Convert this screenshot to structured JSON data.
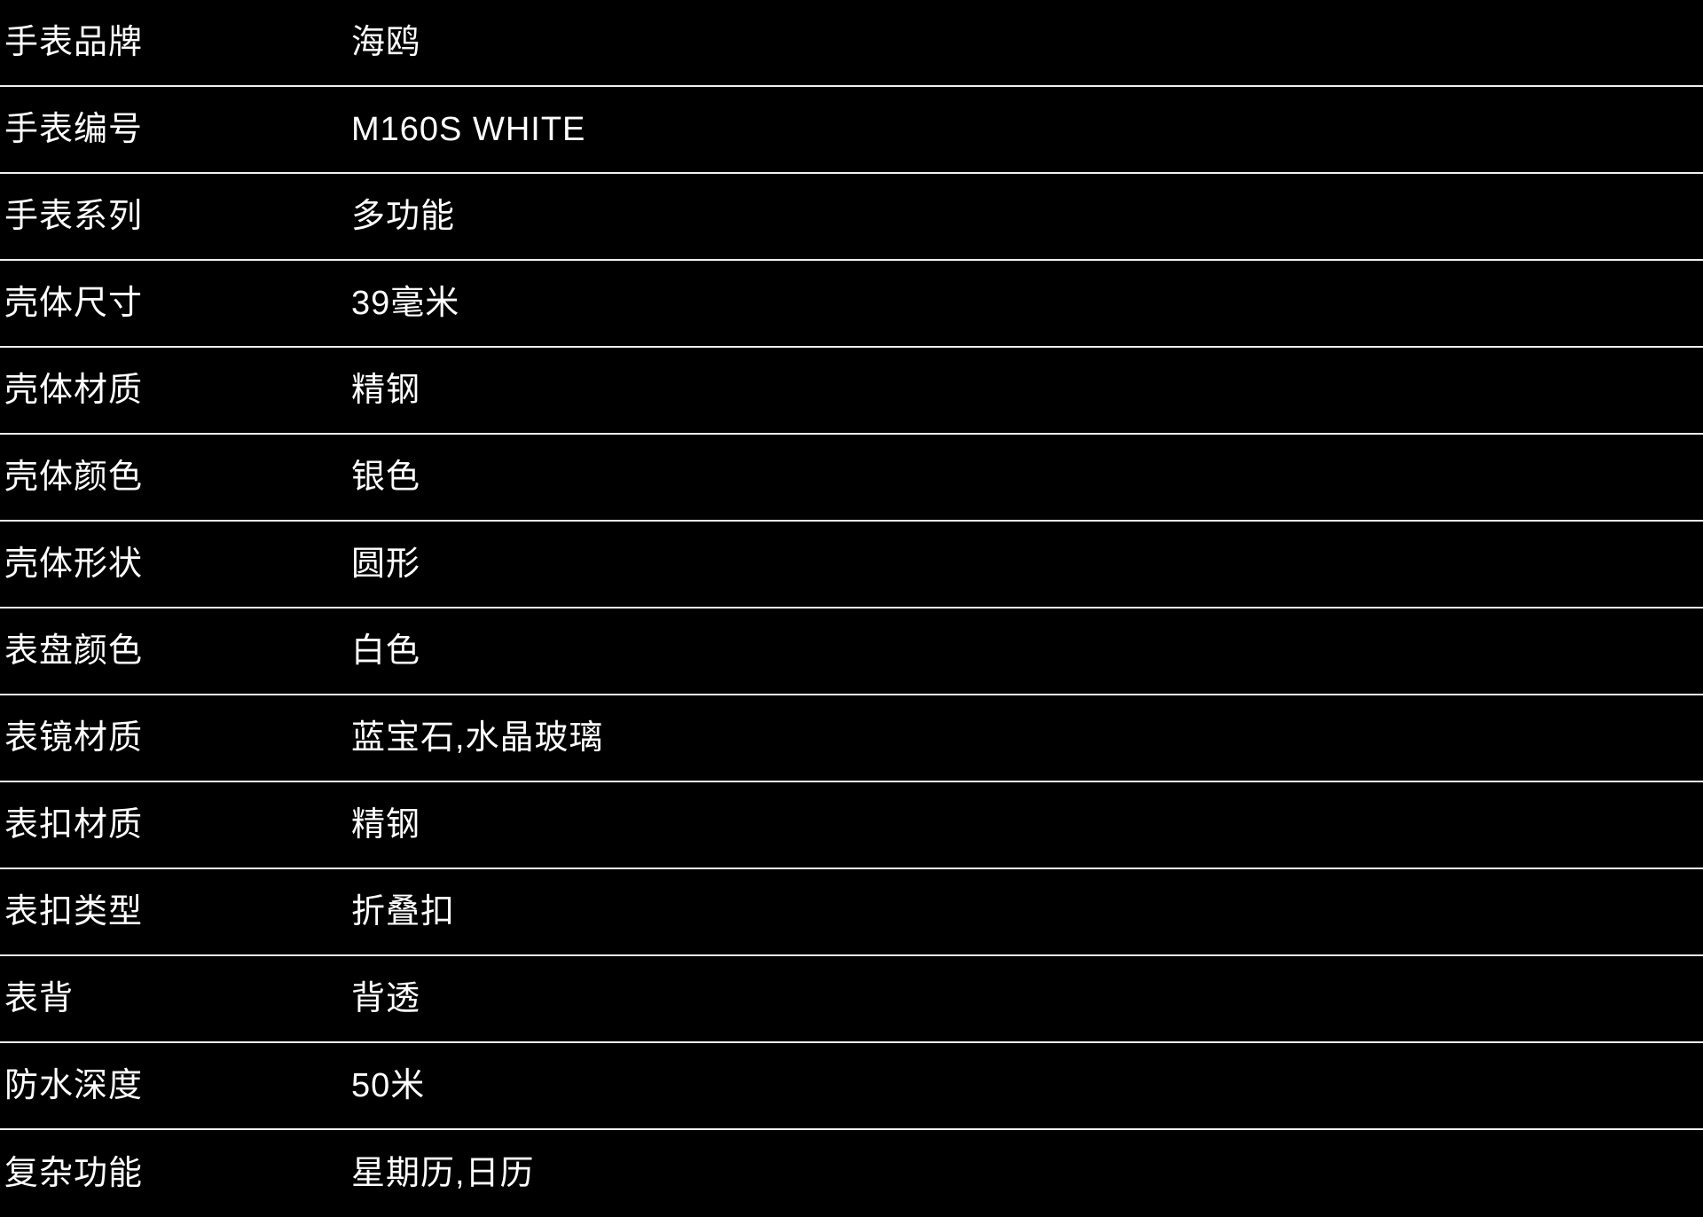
{
  "colors": {
    "background": "#000000",
    "text": "#ffffff",
    "divider": "#f0f0f0"
  },
  "spec_table": {
    "rows": [
      {
        "label": "手表品牌",
        "value": "海鸥"
      },
      {
        "label": "手表编号",
        "value": "M160S WHITE"
      },
      {
        "label": "手表系列",
        "value": "多功能"
      },
      {
        "label": "壳体尺寸",
        "value": "39毫米"
      },
      {
        "label": "壳体材质",
        "value": "精钢"
      },
      {
        "label": "壳体颜色",
        "value": "银色"
      },
      {
        "label": "壳体形状",
        "value": "圆形"
      },
      {
        "label": "表盘颜色",
        "value": "白色"
      },
      {
        "label": "表镜材质",
        "value": "蓝宝石,水晶玻璃"
      },
      {
        "label": "表扣材质",
        "value": "精钢"
      },
      {
        "label": "表扣类型",
        "value": "折叠扣"
      },
      {
        "label": "表背",
        "value": "背透"
      },
      {
        "label": "防水深度",
        "value": "50米"
      },
      {
        "label": "复杂功能",
        "value": "星期历,日历"
      }
    ]
  }
}
